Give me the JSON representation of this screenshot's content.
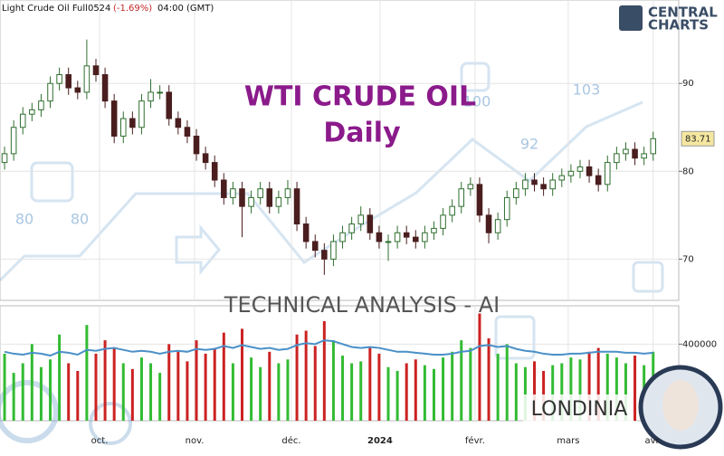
{
  "header": {
    "instrument": "Light Crude Oil Full0524",
    "change": "(-1.69%)",
    "time": "04:00 (GMT)"
  },
  "logo": {
    "line1": "CENTRAL",
    "line2": "CHARTS"
  },
  "watermark": {
    "title": "WTI CRUDE OIL",
    "subtitle": "Daily",
    "caption": "TECHNICAL  ANALYSIS - AI",
    "brand": "LONDINIA",
    "labels": [
      "80",
      "80",
      "100",
      "92",
      "103"
    ]
  },
  "chart_data": {
    "type": "candlestick",
    "open": [
      81,
      82,
      85,
      86.5,
      87,
      88,
      90,
      91,
      89.5,
      89,
      92,
      91,
      88,
      84,
      86,
      85,
      88,
      89,
      89,
      86,
      85,
      84,
      82,
      81,
      79,
      77,
      78,
      76,
      77,
      78,
      76,
      77,
      78,
      74,
      72,
      71,
      70,
      72,
      73,
      74,
      75,
      73,
      72,
      72,
      73,
      72.5,
      72,
      73,
      73.5,
      75,
      76,
      78,
      78.5,
      75,
      73,
      74.5,
      77,
      78,
      79,
      78.5,
      78,
      79,
      79.5,
      80,
      80.5,
      79.5,
      78.5,
      81,
      82,
      82.5,
      81.5,
      82
    ],
    "high": [
      82.8,
      85.8,
      87.3,
      87.8,
      88.8,
      90.8,
      91.8,
      91.8,
      90.3,
      95,
      92.8,
      91.8,
      88.8,
      86.8,
      86.8,
      88.8,
      90.5,
      89.8,
      89.8,
      86.8,
      85.8,
      84.8,
      82.8,
      81.8,
      79.8,
      78.8,
      78.8,
      77.8,
      78.8,
      78.8,
      77.8,
      79,
      78.8,
      74.8,
      72.8,
      71.8,
      72.8,
      73.8,
      74.8,
      76,
      75.8,
      73.8,
      72.8,
      73.8,
      73.8,
      73.3,
      73.8,
      74.3,
      75.8,
      76.8,
      78.8,
      79.3,
      79.3,
      75.8,
      75.3,
      77.8,
      78.8,
      79.8,
      79.8,
      79.3,
      79.8,
      80.3,
      80.8,
      81.3,
      81.3,
      80.3,
      81.8,
      82.8,
      83.3,
      83.3,
      82.8,
      84.5
    ],
    "low": [
      80.2,
      81.2,
      84.2,
      85.7,
      86.2,
      87.2,
      89.2,
      88.7,
      88.2,
      88.2,
      90.2,
      87.2,
      83.2,
      83.2,
      84.2,
      84.2,
      87.2,
      88.2,
      85.2,
      84.2,
      83.2,
      81.2,
      80.2,
      78.2,
      76.2,
      76.2,
      72.5,
      75.2,
      76.2,
      75.2,
      75.2,
      76.2,
      73.2,
      71.2,
      70.2,
      68.2,
      69.2,
      71.2,
      72.2,
      73.2,
      72.2,
      71.2,
      69.8,
      71.2,
      71.7,
      71.2,
      71.2,
      72.2,
      72.7,
      74.2,
      75.2,
      77.2,
      74.2,
      71.8,
      72.2,
      73.7,
      76.2,
      77.2,
      77.7,
      77.2,
      77.2,
      78.2,
      78.7,
      79.2,
      78.7,
      77.7,
      77.7,
      80.2,
      81.2,
      80.7,
      80.7,
      81.2
    ],
    "close": [
      82,
      85,
      86.5,
      87,
      88,
      90,
      91,
      89.5,
      89,
      92,
      91,
      88,
      84,
      86,
      85,
      88,
      89,
      89,
      86,
      85,
      84,
      82,
      81,
      79,
      77,
      78,
      76,
      77,
      78,
      76,
      77,
      78,
      74,
      72,
      71,
      70,
      72,
      73,
      74,
      75,
      73,
      72,
      72,
      73,
      72.5,
      72,
      73,
      73.5,
      75,
      76,
      78,
      78.5,
      75,
      73,
      74.5,
      77,
      78,
      79,
      78.5,
      78,
      79,
      79.5,
      80,
      80.5,
      79.5,
      78.5,
      81,
      82,
      82.5,
      81.5,
      82,
      83.71
    ],
    "volume": [
      350000,
      250000,
      300000,
      400000,
      280000,
      320000,
      450000,
      300000,
      260000,
      500000,
      350000,
      420000,
      380000,
      300000,
      270000,
      330000,
      300000,
      250000,
      400000,
      360000,
      310000,
      420000,
      350000,
      380000,
      460000,
      300000,
      480000,
      330000,
      280000,
      360000,
      300000,
      320000,
      450000,
      470000,
      390000,
      520000,
      420000,
      340000,
      300000,
      310000,
      380000,
      350000,
      280000,
      260000,
      300000,
      320000,
      290000,
      270000,
      330000,
      360000,
      420000,
      380000,
      560000,
      430000,
      350000,
      400000,
      300000,
      280000,
      310000,
      260000,
      290000,
      300000,
      330000,
      320000,
      360000,
      380000,
      350000,
      330000,
      300000,
      340000,
      290000,
      360000
    ],
    "volume_average": [
      360000,
      350000,
      345000,
      355000,
      350000,
      340000,
      360000,
      355000,
      345000,
      370000,
      365000,
      375000,
      380000,
      370000,
      360000,
      365000,
      360000,
      350000,
      360000,
      365000,
      360000,
      375000,
      370000,
      375000,
      390000,
      380000,
      395000,
      385000,
      375000,
      380000,
      370000,
      375000,
      395000,
      405000,
      400000,
      420000,
      415000,
      400000,
      385000,
      380000,
      385000,
      380000,
      370000,
      360000,
      360000,
      355000,
      350000,
      345000,
      345000,
      350000,
      360000,
      365000,
      390000,
      395000,
      385000,
      390000,
      375000,
      365000,
      360000,
      350000,
      345000,
      345000,
      350000,
      350000,
      355000,
      360000,
      360000,
      360000,
      355000,
      355000,
      350000,
      355000
    ],
    "up_color": "#2f6f2f",
    "down_color": "#4a1e1e",
    "volume_up_color": "#33bb33",
    "volume_down_color": "#cc2222",
    "average_color": "#4a90c8",
    "xlim": [
      -0.5,
      73.8
    ],
    "xticks": [
      {
        "value": 10.4,
        "label": "oct."
      },
      {
        "value": 20.8,
        "label": "nov."
      },
      {
        "value": 31.4,
        "label": "déc."
      },
      {
        "value": 41.1,
        "label": "2024"
      },
      {
        "value": 51.5,
        "label": "févr."
      },
      {
        "value": 61.7,
        "label": "mars"
      },
      {
        "value": 71,
        "label": "avr."
      }
    ],
    "ylim": [
      65.3,
      99.5
    ],
    "yticks": [
      70,
      80,
      90
    ],
    "y2lim": [
      0,
      600000
    ],
    "y2ticks": [
      400000
    ],
    "grid": true
  }
}
